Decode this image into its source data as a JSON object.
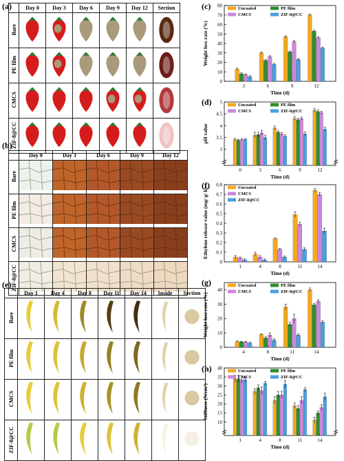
{
  "panels": {
    "a": {
      "label": "(a)",
      "columns": [
        "Day 0",
        "Day 3",
        "Day 6",
        "Day 9",
        "Day 12",
        "Section"
      ],
      "rows": [
        "Bare",
        "PE film",
        "CMCS",
        "ZIF-8@CC"
      ]
    },
    "b": {
      "label": "(b)",
      "columns": [
        "Day 0",
        "Day 3",
        "Day 6",
        "Day 9",
        "Day 12"
      ],
      "rows": [
        "Bare",
        "PE film",
        "CMCS",
        "ZIF-8@CC"
      ]
    },
    "e": {
      "label": "(e)",
      "columns": [
        "Day 1",
        "Day 4",
        "Day 8",
        "Day 11",
        "Day 14",
        "Inside",
        "Section"
      ],
      "rows": [
        "Bare",
        "PE film",
        "CMCS",
        "ZIF-8@CC"
      ]
    },
    "c": {
      "label": "(c)"
    },
    "d": {
      "label": "(d)"
    },
    "f": {
      "label": "(f)"
    },
    "g": {
      "label": "(g)"
    },
    "h": {
      "label": "(h)"
    }
  },
  "colors": {
    "Uncoated": "#f5a81f",
    "PE film": "#2f8f2f",
    "CMCS": "#cc88dd",
    "ZIF-8@CC": "#4a9fe0"
  },
  "chart_data": [
    {
      "id": "c",
      "type": "bar",
      "categories": [
        "3",
        "6",
        "9",
        "12"
      ],
      "xlabel": "Time (d)",
      "ylabel": "Weight loss rate (%)",
      "ylim": [
        0,
        80
      ],
      "yticks": [
        0,
        10,
        20,
        30,
        40,
        50,
        60,
        70,
        80
      ],
      "legend_layout": "2x2",
      "series": [
        {
          "name": "Uncoated",
          "values": [
            13,
            30,
            47,
            70
          ],
          "err": [
            1,
            1,
            1,
            1
          ]
        },
        {
          "name": "PE film",
          "values": [
            8,
            22,
            31,
            53
          ],
          "err": [
            1,
            1,
            1,
            1
          ]
        },
        {
          "name": "CMCS",
          "values": [
            7,
            26,
            42,
            46
          ],
          "err": [
            1,
            1,
            1,
            1
          ]
        },
        {
          "name": "ZIF-8@CC",
          "values": [
            5,
            18,
            23,
            35
          ],
          "err": [
            1,
            1,
            1,
            1
          ]
        }
      ]
    },
    {
      "id": "d",
      "type": "bar",
      "categories": [
        "0",
        "3",
        "6",
        "9",
        "12"
      ],
      "xlabel": "Time (d)",
      "ylabel": "pH value",
      "ylim": [
        0,
        5
      ],
      "yticks": [
        3.0,
        3.5,
        4.0,
        4.5,
        5.0
      ],
      "axis_break": true,
      "legend_layout": "2x2",
      "series": [
        {
          "name": "Uncoated",
          "values": [
            3.42,
            3.6,
            3.9,
            4.3,
            4.65
          ],
          "err": [
            0.04,
            0.12,
            0.08,
            0.08,
            0.08
          ]
        },
        {
          "name": "PE film",
          "values": [
            3.38,
            3.62,
            3.72,
            4.25,
            4.6
          ],
          "err": [
            0.04,
            0.1,
            0.06,
            0.06,
            0.06
          ]
        },
        {
          "name": "CMCS",
          "values": [
            3.4,
            3.7,
            3.65,
            4.3,
            4.55
          ],
          "err": [
            0.04,
            0.1,
            0.06,
            0.06,
            0.06
          ]
        },
        {
          "name": "ZIF-8@CC",
          "values": [
            3.42,
            3.5,
            3.55,
            3.65,
            3.85
          ],
          "err": [
            0.03,
            0.1,
            0.06,
            0.08,
            0.08
          ]
        }
      ]
    },
    {
      "id": "f",
      "type": "bar",
      "categories": [
        "1",
        "4",
        "8",
        "11",
        "14"
      ],
      "xlabel": "Time (d)",
      "ylabel": "Ethylene release value (mg/ g/ h)",
      "ylim": [
        0,
        0.8
      ],
      "yticks": [
        0.0,
        0.1,
        0.2,
        0.3,
        0.4,
        0.5,
        0.6,
        0.7,
        0.8
      ],
      "legend_layout": "1x3",
      "series": [
        {
          "name": "Uncoated",
          "values": [
            0.05,
            0.08,
            0.24,
            0.49,
            0.74
          ],
          "err": [
            0.015,
            0.02,
            0.01,
            0.03,
            0.02
          ]
        },
        {
          "name": "CMCS",
          "values": [
            0.04,
            0.05,
            0.13,
            0.39,
            0.7
          ],
          "err": [
            0.01,
            0.015,
            0.01,
            0.02,
            0.02
          ]
        },
        {
          "name": "ZIF-8@CC",
          "values": [
            0.02,
            0.02,
            0.05,
            0.13,
            0.32
          ],
          "err": [
            0.01,
            0.01,
            0.01,
            0.015,
            0.03
          ]
        }
      ]
    },
    {
      "id": "g",
      "type": "bar",
      "categories": [
        "4",
        "8",
        "11",
        "14"
      ],
      "xlabel": "Time (d)",
      "ylabel": "Weight loss rate (%)",
      "ylim": [
        0,
        45
      ],
      "yticks": [
        0,
        10,
        20,
        30,
        40
      ],
      "legend_layout": "2x2",
      "series": [
        {
          "name": "Uncoated",
          "values": [
            4,
            9,
            28,
            40
          ],
          "err": [
            0.4,
            0.5,
            2,
            1.2
          ]
        },
        {
          "name": "PE film",
          "values": [
            3.8,
            6.5,
            16,
            29.5
          ],
          "err": [
            0.4,
            0.8,
            1.5,
            1
          ]
        },
        {
          "name": "CMCS",
          "values": [
            3.8,
            8.5,
            20,
            32
          ],
          "err": [
            0.4,
            1.5,
            3,
            1
          ]
        },
        {
          "name": "ZIF-8@CC",
          "values": [
            3,
            5,
            8.5,
            17.5
          ],
          "err": [
            0.5,
            0.8,
            0.8,
            1
          ]
        }
      ]
    },
    {
      "id": "h",
      "type": "bar",
      "categories": [
        "1",
        "4",
        "8",
        "11",
        "14"
      ],
      "xlabel": "Time (d)",
      "ylabel": "Stiffness (N/cm²)",
      "ylim": [
        0,
        40
      ],
      "yticks": [
        10,
        15,
        20,
        25,
        30,
        35,
        40
      ],
      "axis_break": true,
      "legend_layout": "2x2",
      "series": [
        {
          "name": "Uncoated",
          "values": [
            34,
            27,
            22,
            19,
            11
          ],
          "err": [
            2,
            1.5,
            2,
            1.5,
            1.5
          ]
        },
        {
          "name": "PE film",
          "values": [
            34,
            29,
            25,
            17.5,
            15
          ],
          "err": [
            2,
            1.5,
            2,
            1.5,
            1
          ]
        },
        {
          "name": "CMCS",
          "values": [
            33.5,
            27.5,
            25,
            22,
            18
          ],
          "err": [
            2,
            2,
            2,
            2,
            1.5
          ]
        },
        {
          "name": "ZIF-8@CC",
          "values": [
            33.5,
            31.5,
            31,
            28,
            24
          ],
          "err": [
            1.5,
            1,
            2,
            1,
            2
          ]
        }
      ]
    }
  ]
}
